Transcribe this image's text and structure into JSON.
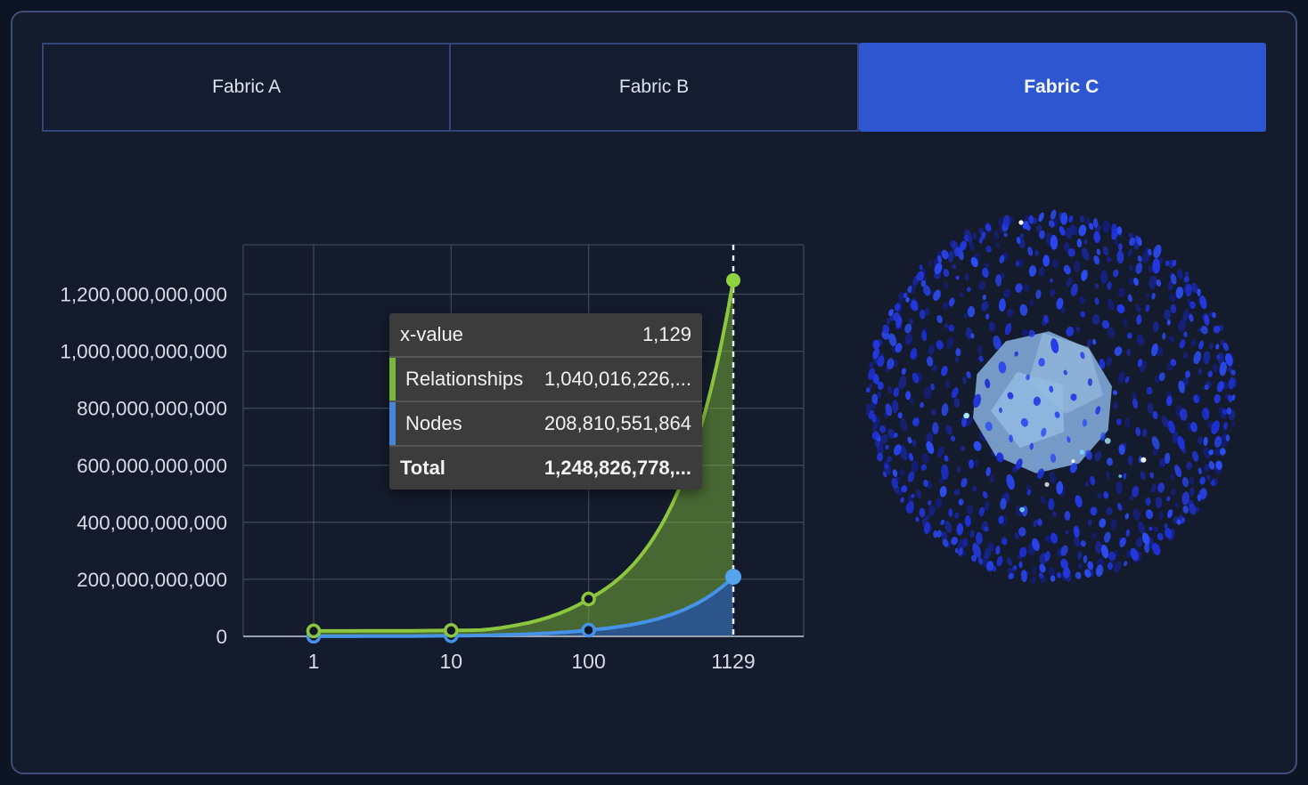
{
  "tabs": [
    {
      "label": "Fabric A",
      "active": false
    },
    {
      "label": "Fabric B",
      "active": false
    },
    {
      "label": "Fabric C",
      "active": true
    }
  ],
  "tooltip": {
    "x_label": "x-value",
    "x_value": "1,129",
    "rows": [
      {
        "label": "Relationships",
        "value": "1,040,016,226,...",
        "accent": "#7cb53e"
      },
      {
        "label": "Nodes",
        "value": "208,810,551,864",
        "accent": "#4486d8"
      }
    ],
    "total_label": "Total",
    "total_value": "1,248,826,778,..."
  },
  "chart_data": {
    "type": "area",
    "stacked": true,
    "x_scale": "log",
    "grid": true,
    "legend": "none",
    "x": [
      1,
      10,
      100,
      1129
    ],
    "x_tick_labels": [
      "1",
      "10",
      "100",
      "1129"
    ],
    "series": [
      {
        "name": "Nodes",
        "color": "#4592e6",
        "area_color": "rgba(64,133,219,0.55)",
        "values": [
          200000000,
          2100000000,
          21900000000,
          208810551864
        ]
      },
      {
        "name": "Relationships",
        "color": "#8cc63e",
        "area_color": "rgba(124,181,58,0.5)",
        "values": [
          1000000000,
          11000000000,
          109000000000,
          1040016226000
        ]
      }
    ],
    "y_ticks": [
      0,
      200000000000,
      400000000000,
      600000000000,
      800000000000,
      1000000000000,
      1200000000000
    ],
    "y_tick_labels": [
      "0",
      "200,000,000,000",
      "400,000,000,000",
      "600,000,000,000",
      "800,000,000,000",
      "1,000,000,000,000",
      "1,200,000,000,000"
    ],
    "ylim": [
      0,
      1370000000000
    ],
    "highlight_x": 1129,
    "highlight_color": "#e9eef6"
  },
  "colors": {
    "active_tab_bg": "#2d56d0",
    "accent_green": "#7cb53e",
    "accent_blue": "#4486d8"
  },
  "sphere": {
    "dot_colors": [
      "#2439e4",
      "#2a45f1",
      "#1e31d6",
      "#2c4df4"
    ],
    "back_dot_colors": [
      "#1724a8",
      "#1b2cc0",
      "#141f96"
    ],
    "core_color": "#7fa9d6",
    "core_face_light": "#a6c6e8",
    "core_face_mid": "#94bbe2",
    "sparkle_colors": [
      "#ffffff",
      "#a8ecff",
      "#74d8ff"
    ]
  }
}
